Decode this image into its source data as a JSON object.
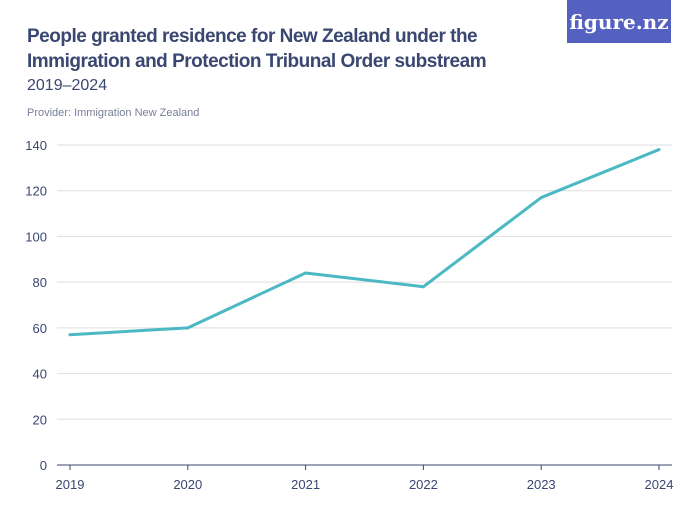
{
  "title": "People granted residence for New Zealand under the Immigration and Protection Tribunal Order substream",
  "subtitle": "2019–2024",
  "provider": "Provider: Immigration New Zealand",
  "logo": "figure.nz",
  "colors": {
    "line": "#4bb8c4",
    "text": "#3a4770",
    "logo_bg": "#5561c0"
  },
  "chart_data": {
    "type": "line",
    "x": [
      "2019",
      "2020",
      "2021",
      "2022",
      "2023",
      "2024"
    ],
    "series": [
      {
        "values": [
          57,
          60,
          84,
          78,
          117,
          138
        ]
      }
    ],
    "ylim": [
      0,
      140
    ],
    "yticks": [
      0,
      20,
      40,
      60,
      80,
      100,
      120,
      140
    ],
    "grid": true,
    "xlabel": "",
    "ylabel": ""
  }
}
